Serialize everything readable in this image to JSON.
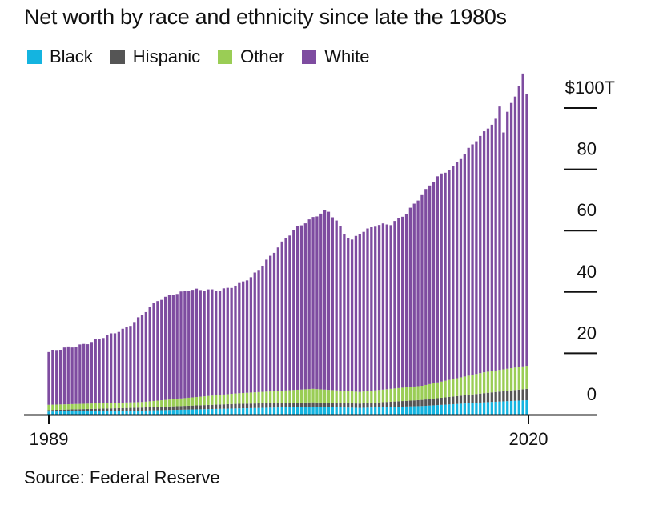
{
  "title": "Net worth by race and ethnicity since late the 1980s",
  "source": "Source: Federal Reserve",
  "legend": [
    {
      "name": "Black",
      "color": "#14b4e0"
    },
    {
      "name": "Hispanic",
      "color": "#555555"
    },
    {
      "name": "Other",
      "color": "#9acd55"
    },
    {
      "name": "White",
      "color": "#7e4ca0"
    }
  ],
  "chart_data": {
    "type": "bar",
    "stacked": true,
    "title": "Net worth by race and ethnicity since late the 1980s",
    "xlabel": "",
    "ylabel": "",
    "units": "trillions USD",
    "frequency": "quarterly",
    "start": "1989Q3",
    "end": "2020Q1",
    "x_tick_labels": [
      "1989",
      "2020"
    ],
    "y_ticks": [
      0,
      20,
      40,
      60,
      80,
      100
    ],
    "y_tick_labels": [
      "0",
      "20",
      "40",
      "60",
      "80",
      "$100T"
    ],
    "ylim": [
      0,
      105
    ],
    "y_axis_position": "right",
    "grid": false,
    "legend_position": "top-left",
    "series_order_bottom_to_top": [
      "Black",
      "Hispanic",
      "Other",
      "White"
    ],
    "total_keypoints": [
      [
        0,
        20.4
      ],
      [
        4,
        21.5
      ],
      [
        8,
        22.8
      ],
      [
        12,
        24.2
      ],
      [
        16,
        26.0
      ],
      [
        20,
        28.5
      ],
      [
        24,
        32.5
      ],
      [
        28,
        37.0
      ],
      [
        32,
        39.5
      ],
      [
        36,
        40.5
      ],
      [
        40,
        40.5
      ],
      [
        44,
        40.8
      ],
      [
        48,
        42.0
      ],
      [
        52,
        44.5
      ],
      [
        56,
        50.5
      ],
      [
        60,
        56.0
      ],
      [
        64,
        61.0
      ],
      [
        68,
        64.5
      ],
      [
        71,
        66.5
      ],
      [
        72,
        66.0
      ],
      [
        74,
        63.0
      ],
      [
        76,
        59.0
      ],
      [
        78,
        57.0
      ],
      [
        80,
        59.5
      ],
      [
        84,
        61.5
      ],
      [
        88,
        62.0
      ],
      [
        90,
        64.0
      ],
      [
        92,
        66.0
      ],
      [
        96,
        71.5
      ],
      [
        100,
        77.5
      ],
      [
        104,
        81.0
      ],
      [
        108,
        86.5
      ],
      [
        112,
        92.0
      ],
      [
        115,
        96.5
      ],
      [
        116,
        100.5
      ],
      [
        117,
        92.5
      ],
      [
        118,
        99.0
      ],
      [
        120,
        103.5
      ],
      [
        122,
        111.0
      ],
      [
        123,
        104.0
      ]
    ],
    "black_keypoints": [
      [
        0,
        1.0
      ],
      [
        24,
        1.3
      ],
      [
        48,
        2.0
      ],
      [
        68,
        2.6
      ],
      [
        80,
        2.2
      ],
      [
        96,
        2.8
      ],
      [
        112,
        4.0
      ],
      [
        123,
        4.7
      ]
    ],
    "hispanic_keypoints": [
      [
        0,
        0.5
      ],
      [
        24,
        1.0
      ],
      [
        48,
        1.5
      ],
      [
        68,
        1.4
      ],
      [
        80,
        1.4
      ],
      [
        96,
        2.0
      ],
      [
        112,
        3.0
      ],
      [
        123,
        3.7
      ]
    ],
    "other_keypoints": [
      [
        0,
        1.7
      ],
      [
        24,
        1.8
      ],
      [
        48,
        3.4
      ],
      [
        68,
        4.4
      ],
      [
        80,
        3.8
      ],
      [
        96,
        4.6
      ],
      [
        112,
        6.8
      ],
      [
        123,
        7.5
      ]
    ]
  }
}
